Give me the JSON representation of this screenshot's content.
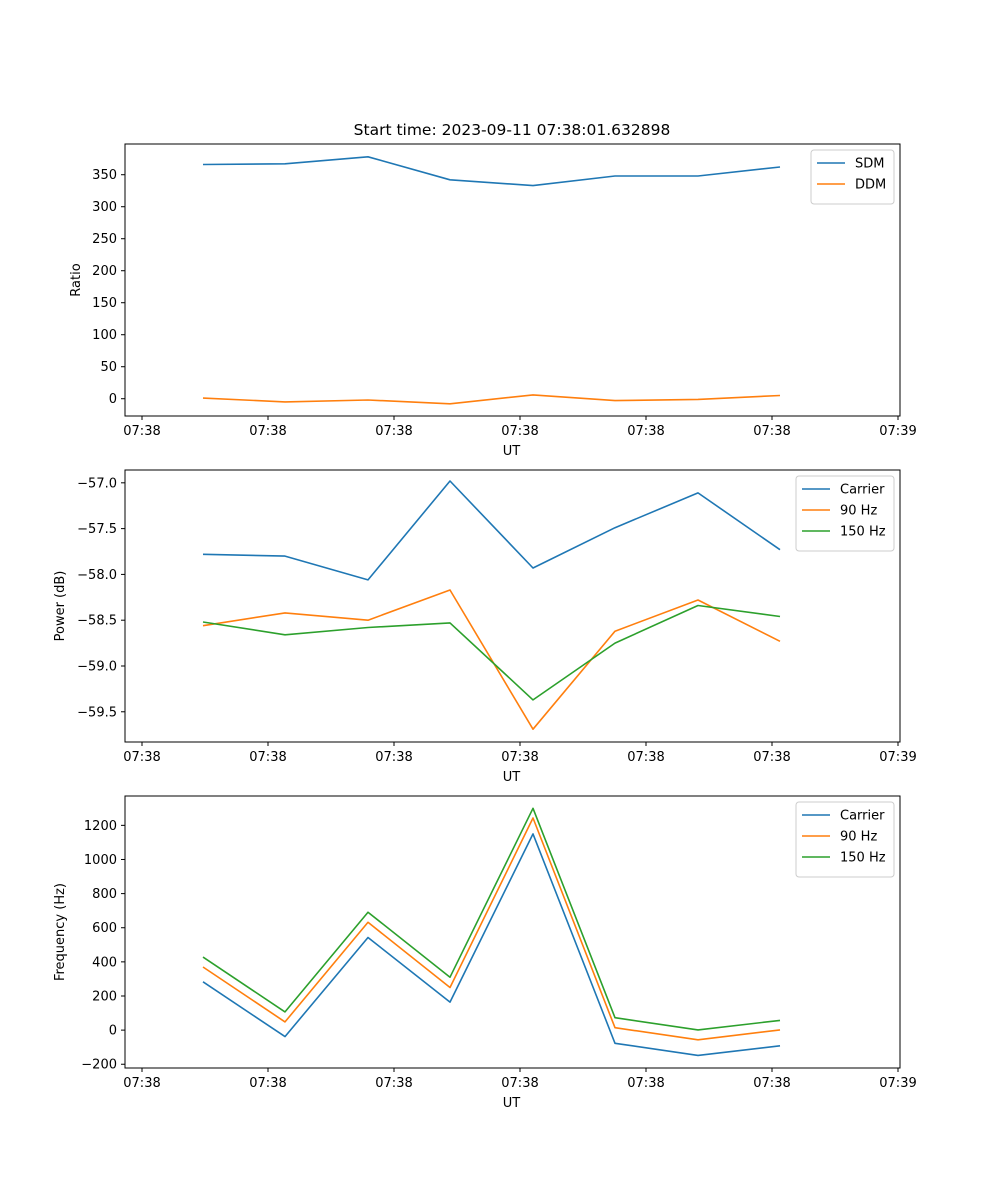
{
  "figure": {
    "title": "Start time: 2023-09-11 07:38:01.632898"
  },
  "colors": {
    "blue": "#1f77b4",
    "orange": "#ff7f0e",
    "green": "#2ca02c",
    "axis": "#000000",
    "legend_border": "#cccccc"
  },
  "chart_data": [
    {
      "type": "line",
      "title": "Start time: 2023-09-11 07:38:01.632898",
      "xlabel": "UT",
      "ylabel": "Ratio",
      "xticks": [
        "07:38",
        "07:38",
        "07:38",
        "07:38",
        "07:38",
        "07:38",
        "07:38",
        "07:39"
      ],
      "x_sample_index": [
        0,
        1,
        2,
        3,
        4,
        5,
        6,
        7
      ],
      "ylim": [
        -27,
        398
      ],
      "yticks": [
        0,
        50,
        100,
        150,
        200,
        250,
        300,
        350
      ],
      "legend_position": "upper right",
      "series": [
        {
          "name": "SDM",
          "color": "#1f77b4",
          "values": [
            366,
            367,
            378,
            342,
            333,
            348,
            348,
            362
          ]
        },
        {
          "name": "DDM",
          "color": "#ff7f0e",
          "values": [
            1,
            -5,
            -2,
            -8,
            6,
            -3,
            -1,
            5
          ]
        }
      ]
    },
    {
      "type": "line",
      "title": "",
      "xlabel": "UT",
      "ylabel": "Power (dB)",
      "xticks": [
        "07:38",
        "07:38",
        "07:38",
        "07:38",
        "07:38",
        "07:38",
        "07:38",
        "07:39"
      ],
      "x_sample_index": [
        0,
        1,
        2,
        3,
        4,
        5,
        6,
        7
      ],
      "ylim": [
        -59.83,
        -56.86
      ],
      "yticks": [
        -59.5,
        -59.0,
        -58.5,
        -58.0,
        -57.5,
        -57.0
      ],
      "ytick_labels": [
        "−59.5",
        "−59.0",
        "−58.5",
        "−58.0",
        "−57.5",
        "−57.0"
      ],
      "legend_position": "upper right",
      "series": [
        {
          "name": "Carrier",
          "color": "#1f77b4",
          "values": [
            -57.78,
            -57.8,
            -58.06,
            -56.98,
            -57.93,
            -57.49,
            -57.11,
            -57.73
          ]
        },
        {
          "name": "90 Hz",
          "color": "#ff7f0e",
          "values": [
            -58.56,
            -58.42,
            -58.5,
            -58.17,
            -59.69,
            -58.62,
            -58.28,
            -58.73
          ]
        },
        {
          "name": "150 Hz",
          "color": "#2ca02c",
          "values": [
            -58.52,
            -58.66,
            -58.58,
            -58.53,
            -59.37,
            -58.75,
            -58.34,
            -58.46
          ]
        }
      ]
    },
    {
      "type": "line",
      "title": "",
      "xlabel": "UT",
      "ylabel": "Frequency (Hz)",
      "xticks": [
        "07:38",
        "07:38",
        "07:38",
        "07:38",
        "07:38",
        "07:38",
        "07:38",
        "07:39"
      ],
      "x_sample_index": [
        0,
        1,
        2,
        3,
        4,
        5,
        6,
        7
      ],
      "ylim": [
        -222,
        1372
      ],
      "yticks": [
        -200,
        0,
        200,
        400,
        600,
        800,
        1000,
        1200
      ],
      "ytick_labels": [
        "−200",
        "0",
        "200",
        "400",
        "600",
        "800",
        "1000",
        "1200"
      ],
      "legend_position": "upper right",
      "series": [
        {
          "name": "Carrier",
          "color": "#1f77b4",
          "values": [
            283,
            -38,
            543,
            164,
            1150,
            -77,
            -148,
            -92
          ]
        },
        {
          "name": "90 Hz",
          "color": "#ff7f0e",
          "values": [
            370,
            48,
            632,
            250,
            1243,
            14,
            -57,
            1
          ]
        },
        {
          "name": "150 Hz",
          "color": "#2ca02c",
          "values": [
            428,
            107,
            691,
            310,
            1300,
            73,
            1,
            57
          ]
        }
      ]
    }
  ]
}
